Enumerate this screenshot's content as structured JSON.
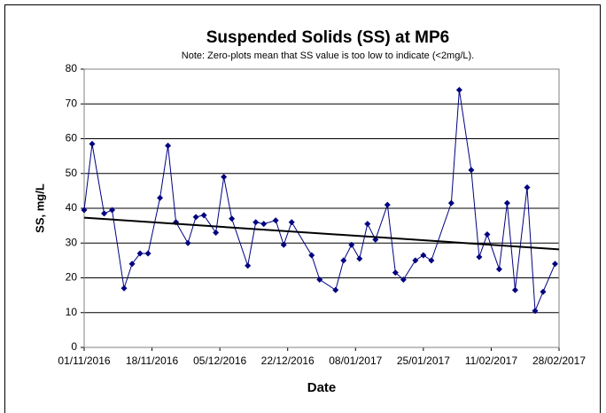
{
  "chart_data": {
    "type": "line",
    "title": "Suspended Solids (SS) at MP6",
    "subtitle": "Note: Zero-plots mean that SS value is too low to indicate (<2mg/L).",
    "x_label": "Date",
    "y_label": "SS, mg/L",
    "x": [
      "2016-11-01",
      "2016-11-03",
      "2016-11-06",
      "2016-11-08",
      "2016-11-11",
      "2016-11-13",
      "2016-11-15",
      "2016-11-17",
      "2016-11-20",
      "2016-11-22",
      "2016-11-24",
      "2016-11-27",
      "2016-11-29",
      "2016-12-01",
      "2016-12-04",
      "2016-12-06",
      "2016-12-08",
      "2016-12-12",
      "2016-12-14",
      "2016-12-16",
      "2016-12-19",
      "2016-12-21",
      "2016-12-23",
      "2016-12-28",
      "2016-12-30",
      "2017-01-03",
      "2017-01-05",
      "2017-01-07",
      "2017-01-09",
      "2017-01-11",
      "2017-01-13",
      "2017-01-16",
      "2017-01-18",
      "2017-01-20",
      "2017-01-23",
      "2017-01-25",
      "2017-01-27",
      "2017-02-01",
      "2017-02-03",
      "2017-02-06",
      "2017-02-08",
      "2017-02-10",
      "2017-02-13",
      "2017-02-15",
      "2017-02-17",
      "2017-02-20",
      "2017-02-22",
      "2017-02-24",
      "2017-02-27"
    ],
    "values": [
      39.5,
      58.5,
      38.5,
      39.5,
      17,
      24,
      27,
      27,
      43,
      58,
      36,
      30,
      37.5,
      38,
      33,
      49,
      37,
      23.5,
      36,
      35.5,
      36.5,
      29.5,
      36,
      26.5,
      19.5,
      16.5,
      25,
      29.5,
      25.5,
      35.5,
      31,
      41,
      21.5,
      19.5,
      25,
      26.5,
      25,
      41.5,
      74,
      51,
      26,
      32.5,
      22.5,
      41.5,
      16.5,
      46,
      10.5,
      16,
      24
    ],
    "color": "#000080",
    "trendline": {
      "x": [
        "2016-11-01",
        "2017-02-28"
      ],
      "values": [
        37.3,
        28.2
      ],
      "color": "#000000"
    },
    "xlim": [
      "2016-11-01",
      "2017-02-28"
    ],
    "xticks": [
      {
        "value": "2016-11-01",
        "label": "01/11/2016"
      },
      {
        "value": "2016-11-18",
        "label": "18/11/2016"
      },
      {
        "value": "2016-12-05",
        "label": "05/12/2016"
      },
      {
        "value": "2016-12-22",
        "label": "22/12/2016"
      },
      {
        "value": "2017-01-08",
        "label": "08/01/2017"
      },
      {
        "value": "2017-01-25",
        "label": "25/01/2017"
      },
      {
        "value": "2017-02-11",
        "label": "11/02/2017"
      },
      {
        "value": "2017-02-28",
        "label": "28/02/2017"
      }
    ],
    "ylim": [
      0,
      80
    ],
    "yticks": [
      0,
      10,
      20,
      30,
      40,
      50,
      60,
      70,
      80
    ],
    "grid": true
  }
}
